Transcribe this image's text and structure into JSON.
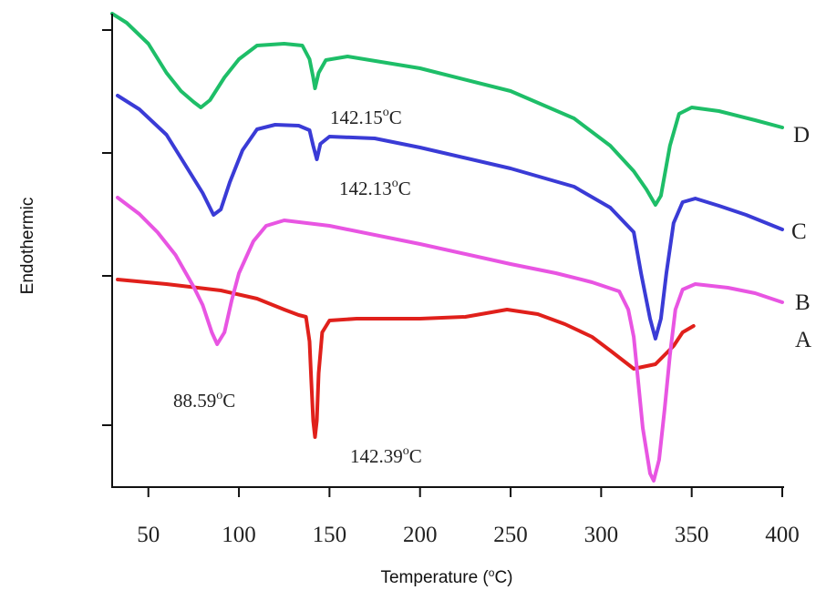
{
  "chart_data": {
    "type": "line",
    "xlabel": "Temperature (°C)",
    "ylabel": "Endothermic",
    "xlim": [
      30,
      400
    ],
    "x_ticks": [
      50,
      100,
      150,
      200,
      250,
      300,
      350,
      400
    ],
    "y_ticks": 4,
    "grid": false,
    "legend": "none",
    "series": [
      {
        "name": "A",
        "color": "#e0201b",
        "points": [
          [
            33,
            307
          ],
          [
            60,
            312
          ],
          [
            90,
            319
          ],
          [
            110,
            328
          ],
          [
            125,
            340
          ],
          [
            133,
            346
          ],
          [
            137,
            348
          ],
          [
            139,
            375
          ],
          [
            140,
            420
          ],
          [
            141,
            462
          ],
          [
            142,
            480
          ],
          [
            143,
            462
          ],
          [
            144,
            410
          ],
          [
            146,
            365
          ],
          [
            150,
            352
          ],
          [
            165,
            350
          ],
          [
            200,
            350
          ],
          [
            225,
            348
          ],
          [
            248,
            340
          ],
          [
            265,
            345
          ],
          [
            280,
            356
          ],
          [
            295,
            370
          ],
          [
            305,
            385
          ],
          [
            318,
            405
          ],
          [
            330,
            400
          ],
          [
            340,
            380
          ],
          [
            345,
            365
          ],
          [
            351,
            358
          ]
        ]
      },
      {
        "name": "B",
        "color": "#e855e2",
        "points": [
          [
            33,
            217
          ],
          [
            45,
            235
          ],
          [
            55,
            255
          ],
          [
            65,
            280
          ],
          [
            75,
            315
          ],
          [
            80,
            335
          ],
          [
            85,
            365
          ],
          [
            88,
            378
          ],
          [
            92,
            365
          ],
          [
            96,
            330
          ],
          [
            100,
            300
          ],
          [
            108,
            265
          ],
          [
            115,
            248
          ],
          [
            125,
            242
          ],
          [
            150,
            248
          ],
          [
            200,
            268
          ],
          [
            250,
            290
          ],
          [
            275,
            300
          ],
          [
            295,
            310
          ],
          [
            310,
            320
          ],
          [
            315,
            340
          ],
          [
            318,
            370
          ],
          [
            320,
            410
          ],
          [
            323,
            470
          ],
          [
            327,
            520
          ],
          [
            329,
            528
          ],
          [
            332,
            505
          ],
          [
            335,
            450
          ],
          [
            338,
            390
          ],
          [
            341,
            340
          ],
          [
            345,
            318
          ],
          [
            352,
            312
          ],
          [
            370,
            316
          ],
          [
            385,
            322
          ],
          [
            400,
            332
          ]
        ]
      },
      {
        "name": "C",
        "color": "#3a3bd6",
        "points": [
          [
            33,
            105
          ],
          [
            45,
            120
          ],
          [
            60,
            148
          ],
          [
            70,
            180
          ],
          [
            80,
            212
          ],
          [
            86,
            236
          ],
          [
            90,
            230
          ],
          [
            95,
            200
          ],
          [
            102,
            165
          ],
          [
            110,
            142
          ],
          [
            120,
            137
          ],
          [
            133,
            138
          ],
          [
            139,
            143
          ],
          [
            141,
            160
          ],
          [
            143,
            175
          ],
          [
            145,
            158
          ],
          [
            150,
            150
          ],
          [
            175,
            152
          ],
          [
            200,
            162
          ],
          [
            250,
            185
          ],
          [
            285,
            205
          ],
          [
            305,
            228
          ],
          [
            318,
            255
          ],
          [
            322,
            300
          ],
          [
            327,
            350
          ],
          [
            330,
            372
          ],
          [
            333,
            350
          ],
          [
            336,
            300
          ],
          [
            340,
            245
          ],
          [
            345,
            222
          ],
          [
            352,
            218
          ],
          [
            365,
            226
          ],
          [
            380,
            236
          ],
          [
            400,
            252
          ]
        ]
      },
      {
        "name": "D",
        "color": "#1ebe68",
        "points": [
          [
            30,
            15
          ],
          [
            38,
            25
          ],
          [
            50,
            48
          ],
          [
            60,
            80
          ],
          [
            68,
            100
          ],
          [
            75,
            112
          ],
          [
            79,
            118
          ],
          [
            84,
            110
          ],
          [
            92,
            85
          ],
          [
            100,
            65
          ],
          [
            110,
            50
          ],
          [
            125,
            48
          ],
          [
            135,
            50
          ],
          [
            139,
            65
          ],
          [
            141,
            85
          ],
          [
            142,
            97
          ],
          [
            144,
            80
          ],
          [
            148,
            66
          ],
          [
            160,
            62
          ],
          [
            200,
            75
          ],
          [
            250,
            100
          ],
          [
            285,
            130
          ],
          [
            305,
            160
          ],
          [
            318,
            188
          ],
          [
            325,
            208
          ],
          [
            330,
            225
          ],
          [
            333,
            215
          ],
          [
            338,
            160
          ],
          [
            343,
            125
          ],
          [
            350,
            118
          ],
          [
            365,
            122
          ],
          [
            385,
            132
          ],
          [
            400,
            140
          ]
        ]
      }
    ],
    "annotations": [
      {
        "text": "142.15°C"
      },
      {
        "text": "142.13°C"
      },
      {
        "text": "88.59°C"
      },
      {
        "text": "142.39°C"
      }
    ]
  }
}
